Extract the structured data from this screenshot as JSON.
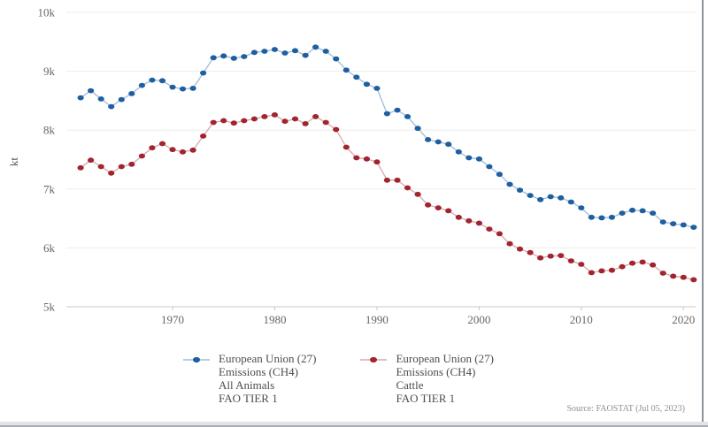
{
  "chart": {
    "ylabel": "kt",
    "source_note": "Source: FAOSTAT (Jul 05, 2023)",
    "colors": {
      "all_animals_point": "#1d5fa0",
      "all_animals_connector": "#9fbbd8",
      "cattle_point": "#a2242f",
      "cattle_connector": "#d8a8ad",
      "gridline": "#ededed",
      "axis": "#c8c8c8",
      "tick_text": "#666666",
      "axis_label_text": "#555555",
      "legend_text": "#4d4d4d"
    }
  },
  "legend": {
    "items": [
      {
        "series": "all_animals",
        "lines": [
          "European Union (27)",
          "Emissions (CH4)",
          "All Animals",
          "FAO TIER 1"
        ]
      },
      {
        "series": "cattle",
        "lines": [
          "European Union (27)",
          "Emissions (CH4)",
          "Cattle",
          "FAO TIER 1"
        ]
      }
    ]
  },
  "chart_data": {
    "type": "line",
    "title": "",
    "xlabel": "",
    "ylabel": "kt",
    "x_range": [
      1961,
      2021
    ],
    "ylim": [
      5000,
      10000
    ],
    "grid": true,
    "legend_position": "bottom",
    "x_ticks": [
      1970,
      1980,
      1990,
      2000,
      2010,
      2020
    ],
    "y_ticks": [
      {
        "v": 10000,
        "label": "10k"
      },
      {
        "v": 9000,
        "label": "9k"
      },
      {
        "v": 8000,
        "label": "8k"
      },
      {
        "v": 7000,
        "label": "7k"
      },
      {
        "v": 6000,
        "label": "6k"
      },
      {
        "v": 5000,
        "label": "5k"
      }
    ],
    "x": [
      1961,
      1962,
      1963,
      1964,
      1965,
      1966,
      1967,
      1968,
      1969,
      1970,
      1971,
      1972,
      1973,
      1974,
      1975,
      1976,
      1977,
      1978,
      1979,
      1980,
      1981,
      1982,
      1983,
      1984,
      1985,
      1986,
      1987,
      1988,
      1989,
      1990,
      1991,
      1992,
      1993,
      1994,
      1995,
      1996,
      1997,
      1998,
      1999,
      2000,
      2001,
      2002,
      2003,
      2004,
      2005,
      2006,
      2007,
      2008,
      2009,
      2010,
      2011,
      2012,
      2013,
      2014,
      2015,
      2016,
      2017,
      2018,
      2019,
      2020,
      2021
    ],
    "series": [
      {
        "name": "European Union (27) Emissions (CH4) All Animals FAO TIER 1",
        "key": "all_animals",
        "point_color": "#1d5fa0",
        "connector_color": "#9fbbd8",
        "values": [
          8550,
          8670,
          8530,
          8400,
          8520,
          8620,
          8760,
          8850,
          8840,
          8730,
          8700,
          8710,
          8970,
          9230,
          9260,
          9220,
          9250,
          9320,
          9340,
          9370,
          9310,
          9350,
          9270,
          9410,
          9340,
          9210,
          9020,
          8900,
          8780,
          8710,
          8280,
          8340,
          8230,
          8030,
          7840,
          7800,
          7760,
          7630,
          7530,
          7510,
          7380,
          7250,
          7080,
          6980,
          6890,
          6820,
          6870,
          6850,
          6780,
          6680,
          6520,
          6510,
          6520,
          6590,
          6640,
          6630,
          6590,
          6440,
          6410,
          6390,
          6350
        ]
      },
      {
        "name": "European Union (27) Emissions (CH4) Cattle FAO TIER 1",
        "key": "cattle",
        "point_color": "#a2242f",
        "connector_color": "#d8a8ad",
        "values": [
          7360,
          7490,
          7380,
          7270,
          7380,
          7420,
          7560,
          7700,
          7770,
          7670,
          7630,
          7660,
          7900,
          8130,
          8160,
          8120,
          8160,
          8190,
          8230,
          8260,
          8150,
          8190,
          8110,
          8230,
          8130,
          8010,
          7710,
          7530,
          7510,
          7460,
          7150,
          7150,
          7020,
          6910,
          6730,
          6680,
          6630,
          6520,
          6460,
          6420,
          6320,
          6240,
          6070,
          5980,
          5920,
          5830,
          5860,
          5870,
          5780,
          5720,
          5580,
          5610,
          5620,
          5680,
          5740,
          5760,
          5710,
          5570,
          5520,
          5500,
          5460
        ]
      }
    ]
  }
}
